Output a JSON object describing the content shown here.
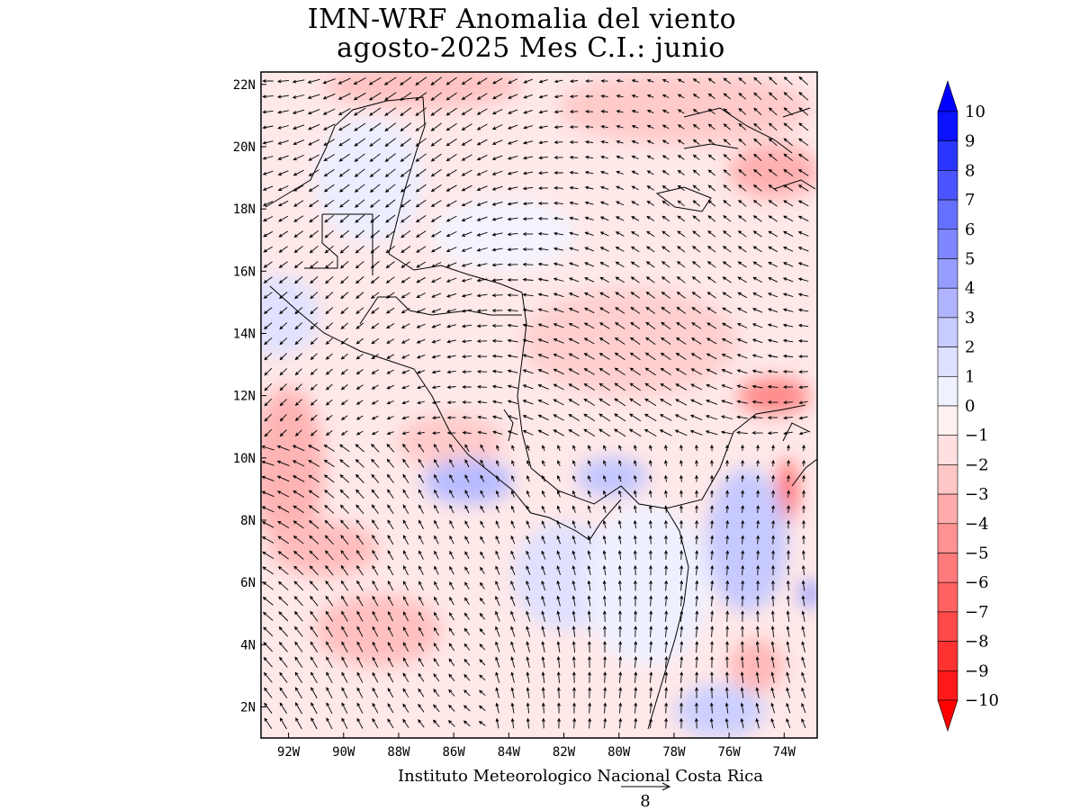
{
  "map": {
    "title_line1": "IMN-WRF Anomalia del viento",
    "title_line2": "agosto-2025 Mes C.I.: junio",
    "credit": "Instituto Meteorologico Nacional Costa Rica",
    "reference_vector_value": "8",
    "lat_labels": [
      "22N",
      "20N",
      "18N",
      "16N",
      "14N",
      "12N",
      "10N",
      "8N",
      "6N",
      "4N",
      "2N"
    ],
    "lon_labels": [
      "92W",
      "90W",
      "88W",
      "86W",
      "84W",
      "82W",
      "80W",
      "78W",
      "76W",
      "74W"
    ],
    "lat_values": [
      22,
      20,
      18,
      16,
      14,
      12,
      10,
      8,
      6,
      4,
      2
    ],
    "lon_values": [
      -92,
      -90,
      -88,
      -86,
      -84,
      -82,
      -80,
      -78,
      -76,
      -74
    ],
    "extent": {
      "lon_min": -93,
      "lon_max": -72.8,
      "lat_min": 1,
      "lat_max": 22.4
    }
  },
  "colorbar": {
    "labels": [
      "10",
      "9",
      "8",
      "7",
      "6",
      "5",
      "4",
      "3",
      "2",
      "1",
      "0",
      "−1",
      "−2",
      "−3",
      "−4",
      "−5",
      "−6",
      "−7",
      "−8",
      "−9",
      "−10"
    ],
    "colors": [
      "#0a12ff",
      "#2a36ff",
      "#4a55ff",
      "#6670ff",
      "#7e87ff",
      "#979dff",
      "#b0b4ff",
      "#c8cbff",
      "#dee0ff",
      "#f0f1ff",
      "#fff0f0",
      "#ffdfdf",
      "#ffc6c6",
      "#ffabab",
      "#ff9292",
      "#ff7a7a",
      "#ff6262",
      "#ff4a4a",
      "#ff3232",
      "#ff1a1a"
    ],
    "top_arrow_color": "#0000ff",
    "bottom_arrow_color": "#ff0000"
  }
}
